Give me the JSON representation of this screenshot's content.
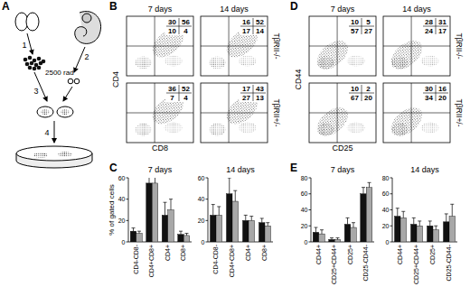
{
  "figure": {
    "panel_labels": [
      "A",
      "B",
      "C",
      "D",
      "E"
    ],
    "diagram": {
      "steps": [
        "1",
        "2",
        "3",
        "4"
      ],
      "dose": "2500 rad"
    },
    "flow": [
      {
        "y_label": "CD4",
        "x_label": "CD8",
        "columns": [
          "7 days",
          "14 days"
        ],
        "rows": [
          "TβRII-/-",
          "TβRII+/-"
        ],
        "quadrants": [
          [
            [
              [
                30,
                56
              ],
              [
                10,
                4
              ]
            ],
            [
              [
                16,
                52
              ],
              [
                17,
                14
              ]
            ]
          ],
          [
            [
              [
                36,
                52
              ],
              [
                7,
                4
              ]
            ],
            [
              [
                17,
                43
              ],
              [
                27,
                13
              ]
            ]
          ]
        ]
      },
      {
        "y_label": "CD44",
        "x_label": "CD25",
        "columns": [
          "7 days",
          "14 days"
        ],
        "rows": [
          "TβRII-/-",
          "TβRII+/-"
        ],
        "quadrants": [
          [
            [
              [
                10,
                5
              ],
              [
                57,
                27
              ]
            ],
            [
              [
                28,
                31
              ],
              [
                24,
                17
              ]
            ]
          ],
          [
            [
              [
                10,
                2
              ],
              [
                67,
                20
              ]
            ],
            [
              [
                30,
                16
              ],
              [
                34,
                20
              ]
            ]
          ]
        ]
      }
    ]
  },
  "chart_data": [
    {
      "type": "bar",
      "title": "7 days",
      "y_label": "% of gated cells",
      "categories": [
        "CD4-CD8-",
        "CD4+CD8+",
        "CD4+",
        "CD8+"
      ],
      "series": [
        {
          "color": "#111111",
          "values": [
            10,
            55,
            25,
            7
          ],
          "errors": [
            3,
            10,
            12,
            3
          ]
        },
        {
          "color": "#a8a8a8",
          "values": [
            8,
            55,
            30,
            6
          ],
          "errors": [
            2,
            8,
            10,
            2
          ]
        }
      ],
      "ylim": [
        0,
        60
      ],
      "yticks": [
        0,
        20,
        40,
        60
      ]
    },
    {
      "type": "bar",
      "title": "14 days",
      "categories": [
        "CD4-CD8-",
        "CD4+CD8+",
        "CD4+",
        "CD8+"
      ],
      "series": [
        {
          "color": "#111111",
          "values": [
            25,
            45,
            20,
            18
          ],
          "errors": [
            10,
            15,
            5,
            4
          ]
        },
        {
          "color": "#a8a8a8",
          "values": [
            25,
            38,
            20,
            15
          ],
          "errors": [
            8,
            10,
            4,
            3
          ]
        }
      ],
      "ylim": [
        0,
        60
      ],
      "yticks": [
        0,
        20,
        40,
        60
      ]
    },
    {
      "type": "bar",
      "title": "7 days",
      "categories": [
        "CD44+",
        "CD25+CD44+",
        "CD25+",
        "CD25-CD44-"
      ],
      "series": [
        {
          "color": "#111111",
          "values": [
            12,
            3,
            22,
            60
          ],
          "errors": [
            6,
            2,
            8,
            8
          ]
        },
        {
          "color": "#a8a8a8",
          "values": [
            10,
            3,
            18,
            68
          ],
          "errors": [
            5,
            2,
            6,
            6
          ]
        }
      ],
      "ylim": [
        0,
        80
      ],
      "yticks": [
        0,
        20,
        40,
        60,
        80
      ]
    },
    {
      "type": "bar",
      "title": "14 days",
      "categories": [
        "CD44+",
        "CD25+CD44+",
        "CD25+",
        "CD25-CD44-"
      ],
      "series": [
        {
          "color": "#111111",
          "values": [
            32,
            22,
            20,
            25
          ],
          "errors": [
            10,
            8,
            6,
            10
          ]
        },
        {
          "color": "#a8a8a8",
          "values": [
            30,
            20,
            15,
            32
          ],
          "errors": [
            8,
            6,
            5,
            15
          ]
        }
      ],
      "ylim": [
        0,
        80
      ],
      "yticks": [
        0,
        20,
        40,
        60,
        80
      ]
    }
  ]
}
